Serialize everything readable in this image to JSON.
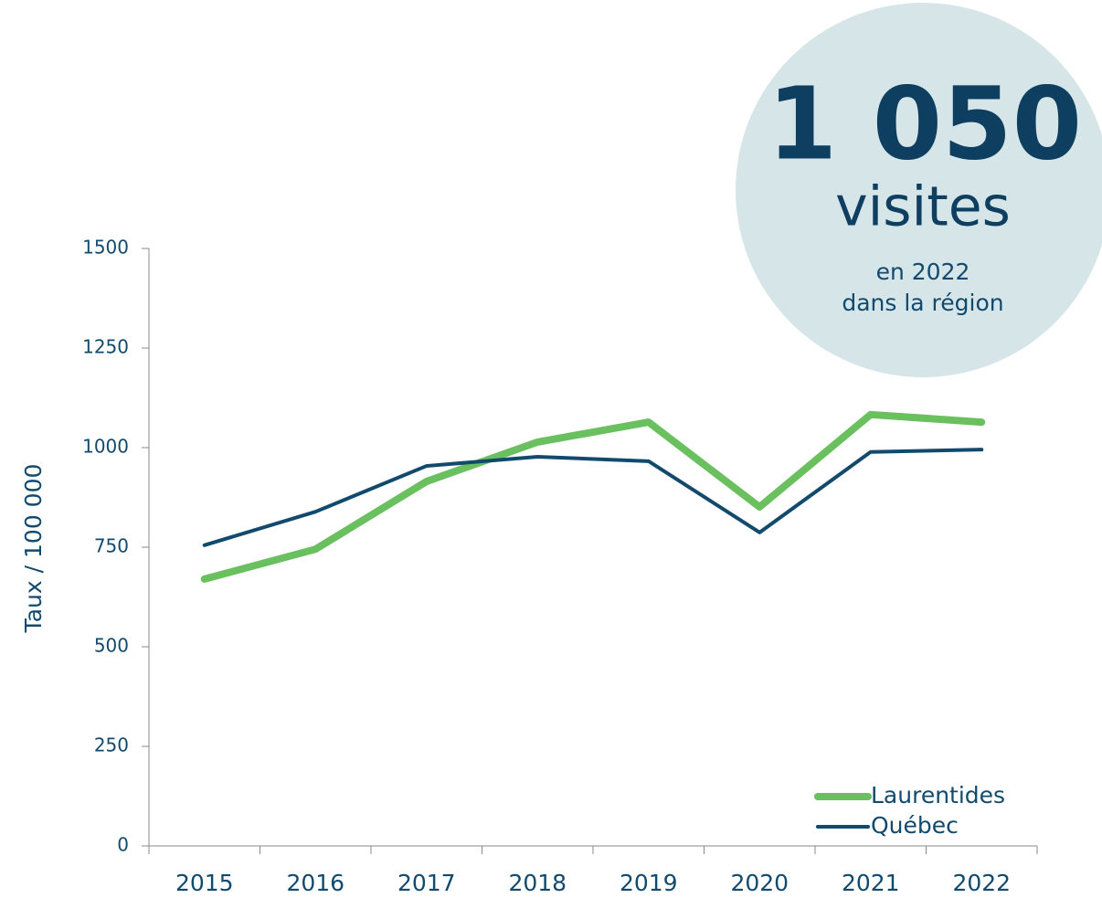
{
  "chart_data": {
    "type": "line",
    "y_label": "Taux / 100 000",
    "categories": [
      "2015",
      "2016",
      "2017",
      "2018",
      "2019",
      "2020",
      "2021",
      "2022"
    ],
    "series": [
      {
        "name": "Laurentides",
        "color": "#6abf5e",
        "values": [
          670,
          745,
          915,
          1014,
          1064,
          851,
          1083,
          1064
        ]
      },
      {
        "name": "Québec",
        "color": "#124a6e",
        "values": [
          755,
          839,
          954,
          977,
          966,
          787,
          989,
          995
        ]
      }
    ],
    "ylim": [
      0,
      1500
    ],
    "yticks": [
      0,
      250,
      500,
      750,
      1000,
      1250,
      1500
    ],
    "legend": "lower right",
    "annotation": {
      "number": "1 050",
      "unit": "visites",
      "line1": "en 2022",
      "line2": "dans la région"
    }
  }
}
